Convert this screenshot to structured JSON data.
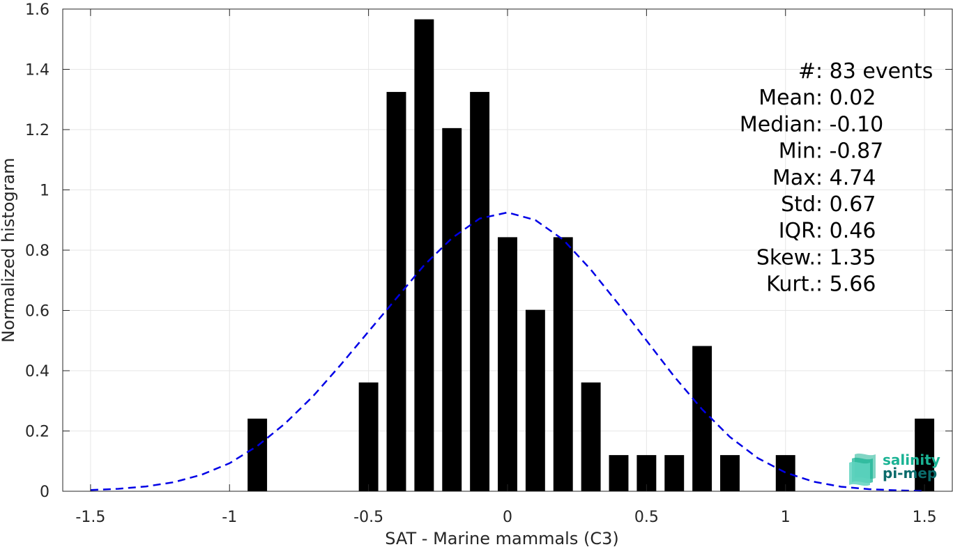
{
  "chart_data": {
    "type": "bar",
    "xlabel": "SAT - Marine mammals (C3)",
    "ylabel": "Normalized histogram",
    "xlim": [
      -1.6,
      1.6
    ],
    "ylim": [
      0,
      1.6
    ],
    "xticks": [
      -1.5,
      -1,
      -0.5,
      0,
      0.5,
      1,
      1.5
    ],
    "xtick_labels": [
      "-1.5",
      "-1",
      "-0.5",
      "0",
      "0.5",
      "1",
      "1.5"
    ],
    "yticks": [
      0,
      0.2,
      0.4,
      0.6,
      0.8,
      1,
      1.2,
      1.4,
      1.6
    ],
    "ytick_labels": [
      "0",
      "0.2",
      "0.4",
      "0.6",
      "0.8",
      "1",
      "1.2",
      "1.4",
      "1.6"
    ],
    "grid": true,
    "bar_color": "#000000",
    "bar_width": 0.07,
    "bars": [
      {
        "x": -0.9,
        "value": 0.241
      },
      {
        "x": -0.5,
        "value": 0.361
      },
      {
        "x": -0.4,
        "value": 1.325
      },
      {
        "x": -0.3,
        "value": 1.566
      },
      {
        "x": -0.2,
        "value": 1.205
      },
      {
        "x": -0.1,
        "value": 1.325
      },
      {
        "x": 0.0,
        "value": 0.843
      },
      {
        "x": 0.1,
        "value": 0.602
      },
      {
        "x": 0.2,
        "value": 0.843
      },
      {
        "x": 0.3,
        "value": 0.361
      },
      {
        "x": 0.4,
        "value": 0.12
      },
      {
        "x": 0.5,
        "value": 0.12
      },
      {
        "x": 0.6,
        "value": 0.12
      },
      {
        "x": 0.7,
        "value": 0.482
      },
      {
        "x": 0.8,
        "value": 0.12
      },
      {
        "x": 1.0,
        "value": 0.12
      },
      {
        "x": 1.5,
        "value": 0.241
      }
    ],
    "fit_curve": {
      "type": "gaussian",
      "color": "#0000e6",
      "style": "dashed",
      "x": [
        -1.5,
        -1.4,
        -1.3,
        -1.2,
        -1.1,
        -1.0,
        -0.9,
        -0.8,
        -0.7,
        -0.6,
        -0.5,
        -0.4,
        -0.3,
        -0.2,
        -0.1,
        0.0,
        0.1,
        0.2,
        0.3,
        0.4,
        0.5,
        0.6,
        0.7,
        0.8,
        0.9,
        1.0,
        1.1,
        1.2,
        1.3,
        1.4,
        1.5
      ],
      "y": [
        0.004,
        0.008,
        0.016,
        0.03,
        0.055,
        0.093,
        0.15,
        0.225,
        0.315,
        0.42,
        0.53,
        0.64,
        0.75,
        0.84,
        0.905,
        0.925,
        0.9,
        0.835,
        0.735,
        0.62,
        0.5,
        0.38,
        0.272,
        0.18,
        0.11,
        0.062,
        0.032,
        0.015,
        0.007,
        0.003,
        0.001
      ]
    },
    "annotations": [
      {
        "label": "#  ",
        "value": ": 83 events"
      },
      {
        "label": "Mean ",
        "value": ": 0.02"
      },
      {
        "label": "Median ",
        "value": ": -0.10"
      },
      {
        "label": "Min ",
        "value": ": -0.87"
      },
      {
        "label": "Max ",
        "value": ": 4.74"
      },
      {
        "label": "Std ",
        "value": ": 0.67"
      },
      {
        "label": "IQR ",
        "value": ": 0.46"
      },
      {
        "label": "Skew. ",
        "value": ": 1.35"
      },
      {
        "label": "Kurt. ",
        "value": ": 5.66"
      }
    ]
  },
  "logo": {
    "line1": "salinity",
    "line2": "pi-mep",
    "color1": "#1ab394",
    "color2": "#0b6b6b"
  },
  "colors": {
    "grid": "#e6e6e6",
    "axis": "#262626"
  }
}
